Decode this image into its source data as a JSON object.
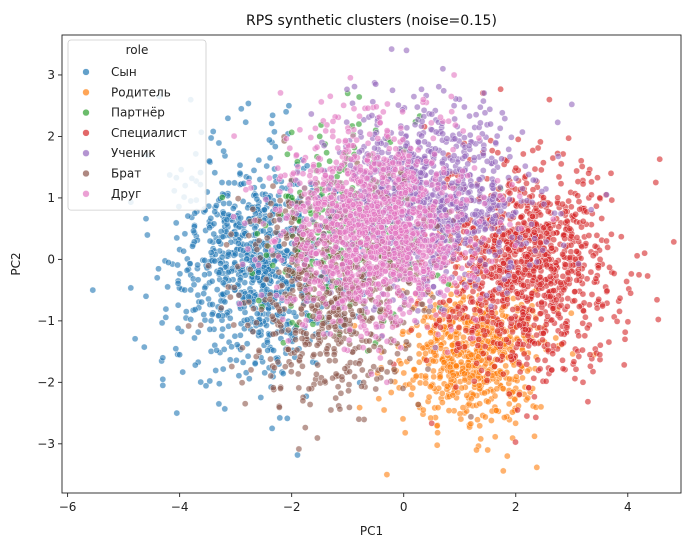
{
  "chart_data": {
    "type": "scatter",
    "title": "RPS synthetic clusters (noise=0.15)",
    "xlabel": "PC1",
    "ylabel": "PC2",
    "xlim": [
      -6.1,
      4.95
    ],
    "ylim": [
      -3.8,
      3.65
    ],
    "xticks": [
      -6,
      -4,
      -2,
      0,
      2,
      4
    ],
    "yticks": [
      -3,
      -2,
      -1,
      0,
      1,
      2,
      3
    ],
    "grid": false,
    "legend": {
      "title": "role",
      "placement": "top-left",
      "entries": [
        "Сын",
        "Родитель",
        "Партнёр",
        "Специалист",
        "Ученик",
        "Брат",
        "Друг"
      ]
    },
    "series": [
      {
        "name": "Сын",
        "color": "#1f77b4",
        "clusters": [
          {
            "center": [
              -2.6,
              -0.1
            ],
            "spread": [
              0.75,
              0.85
            ],
            "n": 900
          }
        ],
        "points": [
          [
            -5.55,
            -0.5
          ],
          [
            -4.6,
            -0.6
          ],
          [
            -4.3,
            -1.6
          ],
          [
            -4.05,
            -2.5
          ],
          [
            -4.3,
            -1.95
          ],
          [
            -4.3,
            -2.05
          ],
          [
            -3.3,
            -2.35
          ],
          [
            -2.35,
            -2.75
          ],
          [
            -2.9,
            2.45
          ],
          [
            -2.05,
            2.5
          ],
          [
            -2.1,
            2.4
          ],
          [
            -4.05,
            0.35
          ],
          [
            -3.8,
            0.95
          ],
          [
            -3.9,
            1.2
          ],
          [
            -4.4,
            -0.3
          ],
          [
            -4.0,
            -1.55
          ]
        ]
      },
      {
        "name": "Родитель",
        "color": "#ff7f0e",
        "clusters": [
          {
            "center": [
              1.2,
              -1.55
            ],
            "spread": [
              0.6,
              0.55
            ],
            "n": 650
          }
        ],
        "points": [
          [
            -0.3,
            -3.5
          ],
          [
            1.3,
            -3.1
          ],
          [
            1.5,
            -3.1
          ],
          [
            1.85,
            -3.2
          ],
          [
            -0.35,
            -2.45
          ],
          [
            0.35,
            -2.45
          ],
          [
            2.45,
            -2.4
          ],
          [
            3.4,
            -1.55
          ]
        ]
      },
      {
        "name": "Партнёр",
        "color": "#2ca02c",
        "clusters": [
          {
            "center": [
              -1.0,
              0.6
            ],
            "spread": [
              0.8,
              0.8
            ],
            "n": 250
          }
        ],
        "points": [
          [
            -1.0,
            2.7
          ],
          [
            -0.8,
            2.2
          ],
          [
            -1.5,
            2.0
          ],
          [
            -0.5,
            2.1
          ]
        ]
      },
      {
        "name": "Специалист",
        "color": "#d62728",
        "clusters": [
          {
            "center": [
              2.2,
              -0.1
            ],
            "spread": [
              0.75,
              0.85
            ],
            "n": 1100
          }
        ],
        "points": [
          [
            4.5,
            1.25
          ],
          [
            4.3,
            0.1
          ],
          [
            3.7,
            1.4
          ],
          [
            3.3,
            1.4
          ],
          [
            2.6,
            2.6
          ],
          [
            3.95,
            -1.3
          ],
          [
            4.05,
            -0.55
          ],
          [
            3.5,
            -1.55
          ],
          [
            3.5,
            1.0
          ],
          [
            4.2,
            -0.25
          ],
          [
            3.2,
            -2.0
          ]
        ]
      },
      {
        "name": "Ученик",
        "color": "#9467bd",
        "clusters": [
          {
            "center": [
              0.5,
              1.0
            ],
            "spread": [
              0.85,
              0.75
            ],
            "n": 900
          }
        ],
        "points": [
          [
            0.05,
            3.4
          ],
          [
            -0.5,
            2.85
          ],
          [
            0.7,
            3.1
          ],
          [
            -0.2,
            2.75
          ],
          [
            0.9,
            2.5
          ],
          [
            1.55,
            2.2
          ]
        ]
      },
      {
        "name": "Брат",
        "color": "#8c564b",
        "clusters": [
          {
            "center": [
              -1.3,
              -0.6
            ],
            "spread": [
              0.8,
              0.85
            ],
            "n": 600
          }
        ],
        "points": [
          [
            -1.3,
            -2.45
          ],
          [
            -0.8,
            -2.6
          ],
          [
            -1.8,
            -2.3
          ],
          [
            -2.2,
            -2.1
          ]
        ]
      },
      {
        "name": "Друг",
        "color": "#e377c2",
        "clusters": [
          {
            "center": [
              -0.55,
              0.5
            ],
            "spread": [
              0.85,
              0.8
            ],
            "n": 1300
          }
        ],
        "points": [
          [
            0.9,
            3.0
          ],
          [
            -0.9,
            1.85
          ],
          [
            0.35,
            2.6
          ],
          [
            0.85,
            2.65
          ],
          [
            -0.3,
            -2.0
          ]
        ]
      }
    ]
  }
}
